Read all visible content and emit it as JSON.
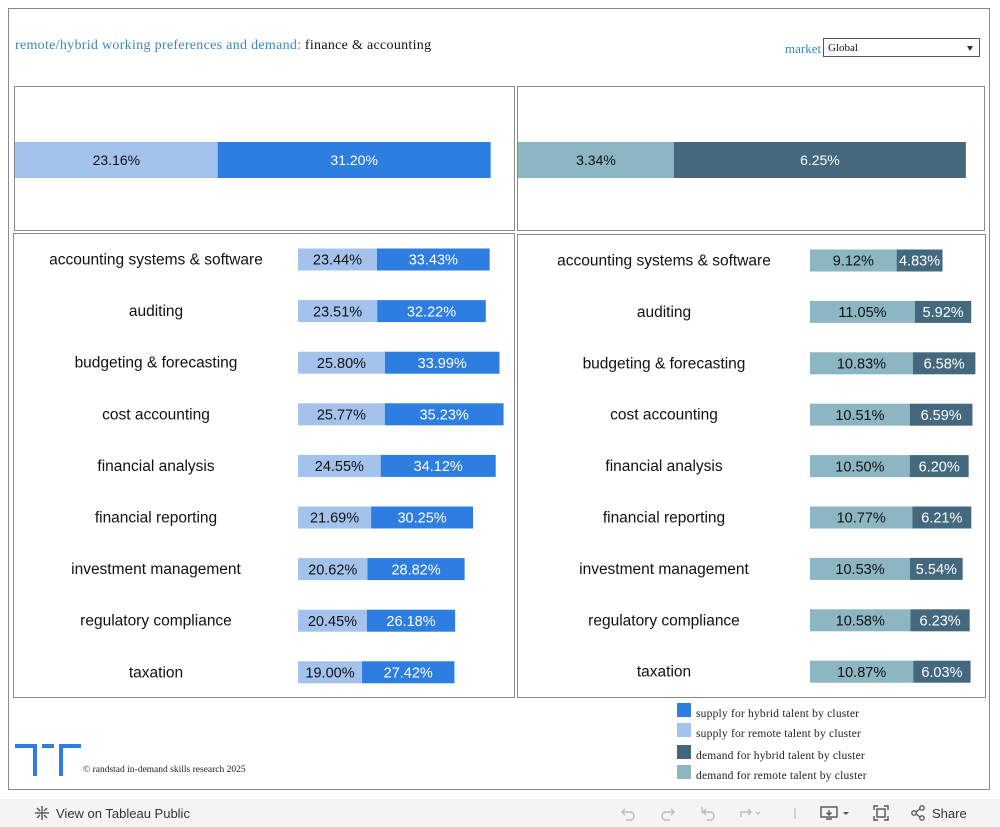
{
  "header": {
    "title_prefix": "remote/hybrid working preferences and demand:",
    "title_topic": "finance & accounting",
    "market_label": "market",
    "market_value": "Global"
  },
  "colors": {
    "supply_hybrid": "#2e7de1",
    "supply_remote": "#a4c3ec",
    "demand_hybrid": "#44697f",
    "demand_remote": "#8bb6c2"
  },
  "chart_data": [
    {
      "type": "bar",
      "stacked": true,
      "orientation": "horizontal",
      "categories": [
        ""
      ],
      "series": [
        {
          "name": "supply for remote talent by cluster",
          "values": [
            23.16
          ],
          "labels": [
            "23.16%"
          ]
        },
        {
          "name": "supply for hybrid talent by cluster",
          "values": [
            31.2
          ],
          "labels": [
            "31.20%"
          ]
        }
      ]
    },
    {
      "type": "bar",
      "stacked": true,
      "orientation": "horizontal",
      "categories": [
        ""
      ],
      "series": [
        {
          "name": "demand for remote talent by cluster",
          "values": [
            3.34
          ],
          "labels": [
            "3.34%"
          ]
        },
        {
          "name": "demand for hybrid talent by cluster",
          "values": [
            6.25
          ],
          "labels": [
            "6.25%"
          ]
        }
      ]
    },
    {
      "type": "bar",
      "stacked": true,
      "orientation": "horizontal",
      "categories": [
        "accounting systems & software",
        "auditing",
        "budgeting & forecasting",
        "cost accounting",
        "financial analysis",
        "financial reporting",
        "investment management",
        "regulatory compliance",
        "taxation"
      ],
      "series": [
        {
          "name": "supply for remote talent by cluster",
          "values": [
            23.44,
            23.51,
            25.8,
            25.77,
            24.55,
            21.69,
            20.62,
            20.45,
            19.0
          ],
          "labels": [
            "23.44%",
            "23.51%",
            "25.80%",
            "25.77%",
            "24.55%",
            "21.69%",
            "20.62%",
            "20.45%",
            "19.00%"
          ]
        },
        {
          "name": "supply for hybrid talent by cluster",
          "values": [
            33.43,
            32.22,
            33.99,
            35.23,
            34.12,
            30.25,
            28.82,
            26.18,
            27.42
          ],
          "labels": [
            "33.43%",
            "32.22%",
            "33.99%",
            "35.23%",
            "34.12%",
            "30.25%",
            "28.82%",
            "26.18%",
            "27.42%"
          ]
        }
      ]
    },
    {
      "type": "bar",
      "stacked": true,
      "orientation": "horizontal",
      "categories": [
        "accounting systems & software",
        "auditing",
        "budgeting & forecasting",
        "cost accounting",
        "financial analysis",
        "financial reporting",
        "investment management",
        "regulatory compliance",
        "taxation"
      ],
      "series": [
        {
          "name": "demand for remote talent by cluster",
          "values": [
            9.12,
            11.05,
            10.83,
            10.51,
            10.5,
            10.77,
            10.53,
            10.58,
            10.87
          ],
          "labels": [
            "9.12%",
            "11.05%",
            "10.83%",
            "10.51%",
            "10.50%",
            "10.77%",
            "10.53%",
            "10.58%",
            "10.87%"
          ]
        },
        {
          "name": "demand for hybrid talent by cluster",
          "values": [
            4.83,
            5.92,
            6.58,
            6.59,
            6.2,
            6.21,
            5.54,
            6.23,
            6.03
          ],
          "labels": [
            "4.83%",
            "5.92%",
            "6.58%",
            "6.59%",
            "6.20%",
            "6.21%",
            "5.54%",
            "6.23%",
            "6.03%"
          ]
        }
      ]
    }
  ],
  "legend": [
    {
      "label": "supply for hybrid talent by cluster",
      "color": "#2e7de1"
    },
    {
      "label": "supply for remote talent by cluster",
      "color": "#a4c3ec"
    },
    {
      "label": "demand for hybrid talent by cluster",
      "color": "#44697f"
    },
    {
      "label": "demand for remote talent by cluster",
      "color": "#8bb6c2"
    }
  ],
  "footer": {
    "copyright": "© randstad in-demand skills research 2025"
  },
  "toolbar": {
    "view_label": "View on Tableau Public",
    "share_label": "Share",
    "icons": [
      "tableau-icon",
      "undo-icon",
      "redo-icon",
      "revert-icon",
      "refresh-icon",
      "pause-icon",
      "download-icon",
      "fullscreen-icon",
      "share-icon"
    ]
  }
}
